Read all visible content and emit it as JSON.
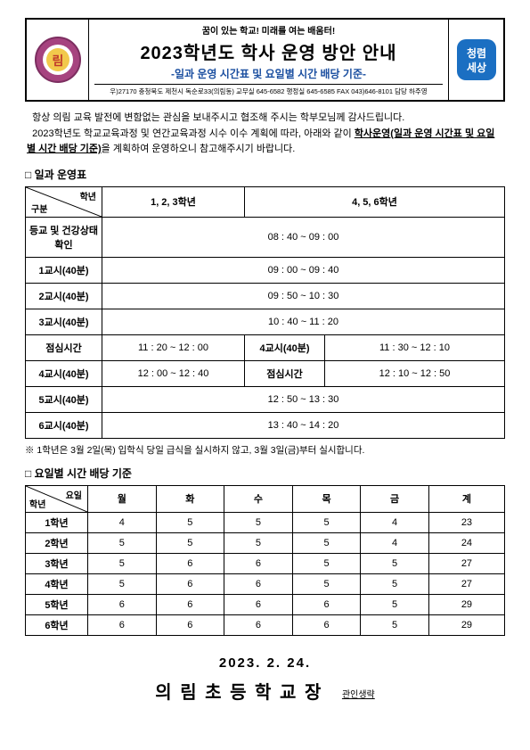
{
  "header": {
    "slogan": "꿈이 있는 학교! 미래를 여는 배움터!",
    "title": "2023학년도 학사 운영 방안 안내",
    "subtitle": "-일과 운영 시간표 및 요일별 시간 배당 기준-",
    "contact": "우)27170 충청북도 제천시 독순로33(의림동)  교무실 645-6582 행정실 645-6585 FAX 043)646-8101 담당 하주영"
  },
  "intro": {
    "line1": "항상 의림 교육 발전에 변함없는 관심을 보내주시고 협조해 주시는 학부모님께 감사드립니다.",
    "line2a": "2023학년도 학교교육과정 및 연간교육과정 시수 이수 계획에 따라, 아래와 같이 ",
    "boldpart": "학사운영(일과 운영 시간표 및 요일별 시간 배당 기준)",
    "line2b": "을 계획하여 운영하오니 참고해주시기 바랍니다."
  },
  "section1": {
    "title": "□ 일과 운영표",
    "head_top": "학년",
    "head_bot": "구분",
    "col1": "1, 2, 3학년",
    "col2": "4, 5, 6학년",
    "rows": [
      {
        "label": "등교 및 건강상태 확인",
        "full": "08 : 40  ~  09 : 00"
      },
      {
        "label": "1교시(40분)",
        "full": "09 : 00  ~  09 : 40"
      },
      {
        "label": "2교시(40분)",
        "full": "09 : 50  ~  10 : 30"
      },
      {
        "label": "3교시(40분)",
        "full": "10 : 40  ~  11 : 20"
      }
    ],
    "split": {
      "r1": {
        "label": "점심시간",
        "left": "11 : 20  ~  12 : 00",
        "mid": "4교시(40분)",
        "right": "11 : 30  ~  12 : 10"
      },
      "r2": {
        "label": "4교시(40분)",
        "left": "12 : 00  ~  12 : 40",
        "mid": "점심시간",
        "right": "12 : 10  ~  12 : 50"
      }
    },
    "rows_after": [
      {
        "label": "5교시(40분)",
        "full": "12 : 50  ~  13 : 30"
      },
      {
        "label": "6교시(40분)",
        "full": "13 : 40  ~  14 : 20"
      }
    ],
    "note": "※ 1학년은 3월 2일(목) 입학식 당일 급식을 실시하지 않고, 3월 3일(금)부터 실시합니다."
  },
  "section2": {
    "title": "□ 요일별 시간 배당 기준",
    "head_top": "요일",
    "head_bot": "학년",
    "days": [
      "월",
      "화",
      "수",
      "목",
      "금",
      "계"
    ],
    "rows": [
      {
        "label": "1학년",
        "cells": [
          "4",
          "5",
          "5",
          "5",
          "4",
          "23"
        ]
      },
      {
        "label": "2학년",
        "cells": [
          "5",
          "5",
          "5",
          "5",
          "4",
          "24"
        ]
      },
      {
        "label": "3학년",
        "cells": [
          "5",
          "6",
          "6",
          "5",
          "5",
          "27"
        ]
      },
      {
        "label": "4학년",
        "cells": [
          "5",
          "6",
          "6",
          "5",
          "5",
          "27"
        ]
      },
      {
        "label": "5학년",
        "cells": [
          "6",
          "6",
          "6",
          "6",
          "5",
          "29"
        ]
      },
      {
        "label": "6학년",
        "cells": [
          "6",
          "6",
          "6",
          "6",
          "5",
          "29"
        ]
      }
    ]
  },
  "footer": {
    "date": "2023. 2. 24.",
    "sign": "의 림 초 등 학 교 장",
    "stamp": "관인생략"
  }
}
